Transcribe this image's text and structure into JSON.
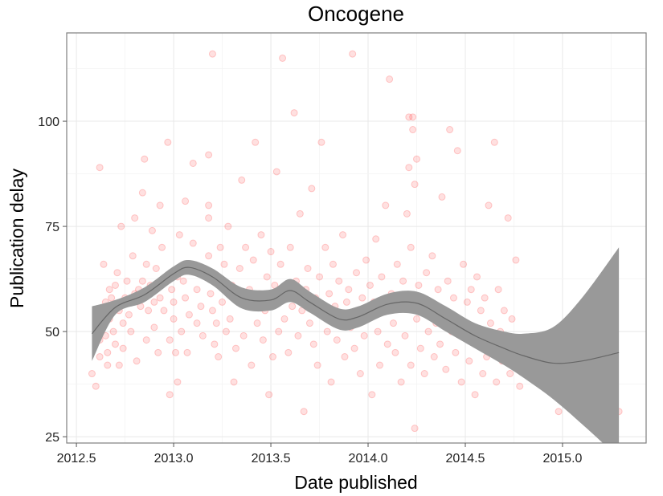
{
  "chart_data": {
    "type": "scatter",
    "title": "Oncogene",
    "xlabel": "Date published",
    "ylabel": "Publication delay",
    "xlim": [
      2012.45,
      2015.43
    ],
    "ylim": [
      23.5,
      121
    ],
    "x_ticks": [
      2012.5,
      2013.0,
      2013.5,
      2014.0,
      2014.5,
      2015.0
    ],
    "x_tick_labels": [
      "2012.5",
      "2013.0",
      "2013.5",
      "2014.0",
      "2014.5",
      "2015.0"
    ],
    "y_ticks": [
      25,
      50,
      75,
      100
    ],
    "y_tick_labels": [
      "25",
      "50",
      "75",
      "100"
    ],
    "grid": true,
    "legend": "none",
    "point_color": "#ff0000",
    "point_alpha": 0.12,
    "smooth_band_color": "#999999",
    "smooth_line_color": "#666666",
    "smooth": {
      "x": [
        2012.58,
        2012.7,
        2012.85,
        2013.0,
        2013.08,
        2013.2,
        2013.35,
        2013.5,
        2013.6,
        2013.7,
        2013.85,
        2013.95,
        2014.1,
        2014.25,
        2014.4,
        2014.55,
        2014.7,
        2014.8,
        2014.95,
        2015.1,
        2015.29
      ],
      "lower": [
        43,
        54,
        57,
        62,
        63.5,
        61,
        55.5,
        55,
        57,
        54.5,
        50.5,
        51,
        54,
        54,
        50,
        46,
        42,
        39,
        34,
        28,
        20
      ],
      "upper": [
        56,
        57.5,
        60.5,
        65.5,
        67,
        65,
        60.5,
        60,
        62.5,
        59.5,
        55.5,
        56,
        59,
        59.5,
        56,
        52,
        50,
        49.5,
        51,
        58,
        70
      ]
    },
    "points": [
      [
        2012.58,
        40
      ],
      [
        2012.6,
        37
      ],
      [
        2012.62,
        44
      ],
      [
        2012.62,
        48
      ],
      [
        2012.63,
        52
      ],
      [
        2012.64,
        55
      ],
      [
        2012.65,
        49
      ],
      [
        2012.65,
        57
      ],
      [
        2012.66,
        45
      ],
      [
        2012.66,
        42
      ],
      [
        2012.62,
        89
      ],
      [
        2012.64,
        66
      ],
      [
        2012.67,
        53
      ],
      [
        2012.67,
        60
      ],
      [
        2012.68,
        58
      ],
      [
        2012.69,
        50
      ],
      [
        2012.7,
        61
      ],
      [
        2012.7,
        47
      ],
      [
        2012.71,
        64
      ],
      [
        2012.72,
        55
      ],
      [
        2012.72,
        42
      ],
      [
        2012.73,
        75
      ],
      [
        2012.74,
        52
      ],
      [
        2012.74,
        46
      ],
      [
        2012.75,
        58
      ],
      [
        2012.76,
        62
      ],
      [
        2012.77,
        54
      ],
      [
        2012.78,
        50
      ],
      [
        2012.79,
        68
      ],
      [
        2012.8,
        59
      ],
      [
        2012.8,
        77
      ],
      [
        2012.81,
        43
      ],
      [
        2012.82,
        60
      ],
      [
        2012.83,
        56
      ],
      [
        2012.84,
        62
      ],
      [
        2012.84,
        83
      ],
      [
        2012.85,
        91
      ],
      [
        2012.86,
        48
      ],
      [
        2012.86,
        66
      ],
      [
        2012.87,
        55
      ],
      [
        2012.88,
        61
      ],
      [
        2012.89,
        74
      ],
      [
        2012.9,
        51
      ],
      [
        2012.9,
        57
      ],
      [
        2012.91,
        65
      ],
      [
        2012.92,
        45
      ],
      [
        2012.93,
        58
      ],
      [
        2012.93,
        80
      ],
      [
        2012.94,
        70
      ],
      [
        2012.95,
        55
      ],
      [
        2012.96,
        62
      ],
      [
        2012.97,
        95
      ],
      [
        2012.98,
        48
      ],
      [
        2012.98,
        35
      ],
      [
        2012.99,
        60
      ],
      [
        2013.0,
        53
      ],
      [
        2013.0,
        57
      ],
      [
        2013.01,
        45
      ],
      [
        2013.02,
        63
      ],
      [
        2013.02,
        38
      ],
      [
        2013.03,
        73
      ],
      [
        2013.04,
        50
      ],
      [
        2013.05,
        62
      ],
      [
        2013.06,
        58
      ],
      [
        2013.06,
        81
      ],
      [
        2013.07,
        45
      ],
      [
        2013.08,
        54
      ],
      [
        2013.1,
        71
      ],
      [
        2013.1,
        90
      ],
      [
        2013.12,
        52
      ],
      [
        2013.12,
        60
      ],
      [
        2013.14,
        56
      ],
      [
        2013.15,
        49
      ],
      [
        2013.18,
        92
      ],
      [
        2013.18,
        80
      ],
      [
        2013.18,
        77
      ],
      [
        2013.18,
        68
      ],
      [
        2013.18,
        63
      ],
      [
        2013.19,
        59
      ],
      [
        2013.2,
        55
      ],
      [
        2013.2,
        116
      ],
      [
        2013.21,
        47
      ],
      [
        2013.22,
        52
      ],
      [
        2013.22,
        62
      ],
      [
        2013.23,
        44
      ],
      [
        2013.24,
        70
      ],
      [
        2013.25,
        57
      ],
      [
        2013.26,
        66
      ],
      [
        2013.27,
        50
      ],
      [
        2013.28,
        75
      ],
      [
        2013.29,
        53
      ],
      [
        2013.3,
        61
      ],
      [
        2013.31,
        38
      ],
      [
        2013.32,
        46
      ],
      [
        2013.33,
        58
      ],
      [
        2013.34,
        65
      ],
      [
        2013.35,
        86
      ],
      [
        2013.36,
        49
      ],
      [
        2013.37,
        70
      ],
      [
        2013.38,
        56
      ],
      [
        2013.39,
        60
      ],
      [
        2013.4,
        42
      ],
      [
        2013.41,
        67
      ],
      [
        2013.42,
        95
      ],
      [
        2013.43,
        52
      ],
      [
        2013.44,
        59
      ],
      [
        2013.45,
        73
      ],
      [
        2013.46,
        48
      ],
      [
        2013.47,
        55
      ],
      [
        2013.48,
        63
      ],
      [
        2013.49,
        35
      ],
      [
        2013.5,
        57
      ],
      [
        2013.5,
        69
      ],
      [
        2013.51,
        44
      ],
      [
        2013.52,
        61
      ],
      [
        2013.53,
        88
      ],
      [
        2013.54,
        50
      ],
      [
        2013.55,
        66
      ],
      [
        2013.56,
        115
      ],
      [
        2013.57,
        53
      ],
      [
        2013.58,
        58
      ],
      [
        2013.59,
        45
      ],
      [
        2013.6,
        70
      ],
      [
        2013.61,
        56
      ],
      [
        2013.62,
        102
      ],
      [
        2013.63,
        62
      ],
      [
        2013.64,
        49
      ],
      [
        2013.65,
        78
      ],
      [
        2013.66,
        55
      ],
      [
        2013.67,
        31
      ],
      [
        2013.68,
        60
      ],
      [
        2013.69,
        65
      ],
      [
        2013.7,
        52
      ],
      [
        2013.71,
        84
      ],
      [
        2013.72,
        47
      ],
      [
        2013.73,
        58
      ],
      [
        2013.74,
        42
      ],
      [
        2013.75,
        63
      ],
      [
        2013.76,
        95
      ],
      [
        2013.77,
        54
      ],
      [
        2013.78,
        70
      ],
      [
        2013.79,
        50
      ],
      [
        2013.8,
        59
      ],
      [
        2013.81,
        38
      ],
      [
        2013.82,
        66
      ],
      [
        2013.83,
        56
      ],
      [
        2013.84,
        48
      ],
      [
        2013.85,
        62
      ],
      [
        2013.86,
        53
      ],
      [
        2013.87,
        73
      ],
      [
        2013.88,
        44
      ],
      [
        2013.89,
        57
      ],
      [
        2013.9,
        60
      ],
      [
        2013.91,
        51
      ],
      [
        2013.92,
        116
      ],
      [
        2013.93,
        46
      ],
      [
        2013.94,
        64
      ],
      [
        2013.95,
        55
      ],
      [
        2013.96,
        40
      ],
      [
        2013.97,
        58
      ],
      [
        2013.98,
        49
      ],
      [
        2013.99,
        67
      ],
      [
        2014.0,
        53
      ],
      [
        2014.01,
        61
      ],
      [
        2014.02,
        35
      ],
      [
        2014.03,
        57
      ],
      [
        2014.04,
        72
      ],
      [
        2014.05,
        50
      ],
      [
        2014.06,
        42
      ],
      [
        2014.07,
        63
      ],
      [
        2014.08,
        55
      ],
      [
        2014.09,
        80
      ],
      [
        2014.1,
        47
      ],
      [
        2014.11,
        110
      ],
      [
        2014.12,
        59
      ],
      [
        2014.13,
        52
      ],
      [
        2014.14,
        45
      ],
      [
        2014.15,
        66
      ],
      [
        2014.16,
        56
      ],
      [
        2014.17,
        38
      ],
      [
        2014.18,
        62
      ],
      [
        2014.19,
        49
      ],
      [
        2014.2,
        58
      ],
      [
        2014.2,
        78
      ],
      [
        2014.21,
        101
      ],
      [
        2014.21,
        89
      ],
      [
        2014.22,
        70
      ],
      [
        2014.22,
        42
      ],
      [
        2014.23,
        101
      ],
      [
        2014.23,
        98
      ],
      [
        2014.24,
        27
      ],
      [
        2014.24,
        85
      ],
      [
        2014.25,
        91
      ],
      [
        2014.25,
        53
      ],
      [
        2014.26,
        61
      ],
      [
        2014.27,
        46
      ],
      [
        2014.28,
        55
      ],
      [
        2014.29,
        40
      ],
      [
        2014.3,
        64
      ],
      [
        2014.31,
        50
      ],
      [
        2014.32,
        57
      ],
      [
        2014.33,
        68
      ],
      [
        2014.34,
        44
      ],
      [
        2014.35,
        52
      ],
      [
        2014.36,
        60
      ],
      [
        2014.37,
        47
      ],
      [
        2014.38,
        82
      ],
      [
        2014.39,
        55
      ],
      [
        2014.4,
        41
      ],
      [
        2014.41,
        62
      ],
      [
        2014.42,
        98
      ],
      [
        2014.43,
        50
      ],
      [
        2014.44,
        58
      ],
      [
        2014.45,
        45
      ],
      [
        2014.46,
        93
      ],
      [
        2014.47,
        53
      ],
      [
        2014.48,
        38
      ],
      [
        2014.49,
        66
      ],
      [
        2014.5,
        49
      ],
      [
        2014.51,
        57
      ],
      [
        2014.52,
        43
      ],
      [
        2014.53,
        60
      ],
      [
        2014.54,
        51
      ],
      [
        2014.55,
        35
      ],
      [
        2014.56,
        63
      ],
      [
        2014.57,
        47
      ],
      [
        2014.58,
        55
      ],
      [
        2014.59,
        40
      ],
      [
        2014.6,
        58
      ],
      [
        2014.61,
        44
      ],
      [
        2014.62,
        80
      ],
      [
        2014.63,
        52
      ],
      [
        2014.64,
        46
      ],
      [
        2014.65,
        95
      ],
      [
        2014.66,
        38
      ],
      [
        2014.67,
        60
      ],
      [
        2014.68,
        50
      ],
      [
        2014.69,
        43
      ],
      [
        2014.7,
        55
      ],
      [
        2014.71,
        47
      ],
      [
        2014.72,
        77
      ],
      [
        2014.73,
        40
      ],
      [
        2014.74,
        53
      ],
      [
        2014.75,
        45
      ],
      [
        2014.76,
        67
      ],
      [
        2014.77,
        42
      ],
      [
        2014.78,
        37
      ],
      [
        2014.8,
        48
      ],
      [
        2014.82,
        40
      ],
      [
        2014.98,
        31
      ],
      [
        2015.29,
        31
      ]
    ]
  }
}
